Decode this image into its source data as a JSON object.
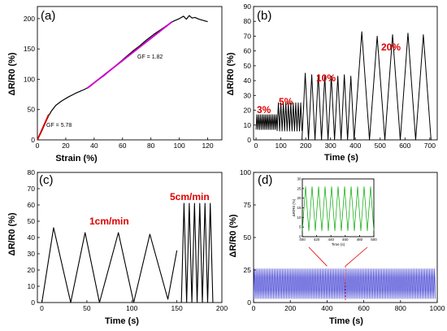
{
  "chart_data": [
    {
      "id": "a",
      "type": "line",
      "panel_label": "(a)",
      "xlabel": "Strain (%)",
      "ylabel": "ΔR/R0 (%)",
      "xlim": [
        0,
        130
      ],
      "ylim": [
        0,
        220
      ],
      "xticks": [
        0,
        20,
        40,
        60,
        80,
        100,
        120
      ],
      "yticks": [
        0,
        50,
        100,
        150,
        200
      ],
      "annotations": [
        {
          "text": "GF = 1.82",
          "x": 72,
          "y": 127
        },
        {
          "text": "GF = 5.78",
          "x": 3,
          "y": 16
        }
      ],
      "series": [
        {
          "role": "measured",
          "color": "#000000",
          "x": [
            0,
            3,
            6,
            8,
            10,
            13,
            17,
            22,
            27,
            30,
            33,
            37,
            42,
            47,
            52,
            57,
            62,
            67,
            72,
            77,
            82,
            87,
            92,
            96,
            100,
            103,
            105,
            107,
            109,
            111,
            114,
            117,
            120
          ],
          "y": [
            0,
            14,
            30,
            40,
            48,
            57,
            64,
            71,
            77,
            80,
            83,
            88,
            98,
            106,
            116,
            126,
            136,
            146,
            155,
            165,
            174,
            182,
            190,
            196,
            200,
            204,
            199,
            205,
            201,
            202,
            199,
            197,
            195
          ]
        },
        {
          "role": "fit-red",
          "color": "#dd0000",
          "x": [
            0,
            8
          ],
          "y": [
            0,
            42
          ]
        },
        {
          "role": "fit-magenta",
          "color": "#cc00cc",
          "x": [
            35,
            95
          ],
          "y": [
            85,
            195
          ]
        }
      ]
    },
    {
      "id": "b",
      "type": "line",
      "panel_label": "(b)",
      "xlabel": "Time (s)",
      "ylabel": "ΔR/R0 (%)",
      "xlim": [
        -10,
        730
      ],
      "ylim": [
        0,
        90
      ],
      "xticks": [
        0,
        100,
        200,
        300,
        400,
        500,
        600,
        700
      ],
      "yticks": [
        0,
        10,
        20,
        30,
        40,
        50,
        60,
        70,
        80,
        90
      ],
      "annotations": [
        {
          "text": "3%",
          "x": 20,
          "y": 20,
          "color": "#dd0000"
        },
        {
          "text": "5%",
          "x": 100,
          "y": 29,
          "color": "#dd0000"
        },
        {
          "text": "10%",
          "x": 240,
          "y": 49,
          "color": "#dd0000"
        },
        {
          "text": "20%",
          "x": 540,
          "y": 76,
          "color": "#dd0000"
        }
      ],
      "series": [
        {
          "role": "3% strain cycles",
          "color": "#000000",
          "t_start": 0,
          "t_end": 85,
          "cycles": 12,
          "peak": 17,
          "trough": 7
        },
        {
          "role": "5% strain cycles",
          "color": "#000000",
          "t_start": 85,
          "t_end": 185,
          "cycles": 10,
          "peak": 25,
          "trough": 6
        },
        {
          "role": "10% strain cycles",
          "color": "#000000",
          "t_start": 185,
          "t_end": 395,
          "cycles": 8,
          "peaks": [
            45,
            44,
            44,
            43,
            43,
            43,
            44,
            43
          ],
          "trough": 0
        },
        {
          "role": "20% strain cycles",
          "color": "#000000",
          "t_start": 395,
          "t_end": 705,
          "cycles": 5,
          "peaks": [
            73,
            70,
            71,
            72,
            71
          ],
          "trough": 0
        }
      ]
    },
    {
      "id": "c",
      "type": "line",
      "panel_label": "(c)",
      "xlabel": "Time (s)",
      "ylabel": "ΔR/R0 (%)",
      "xlim": [
        -5,
        200
      ],
      "ylim": [
        0,
        80
      ],
      "xticks": [
        0,
        50,
        100,
        150,
        200
      ],
      "yticks": [
        0,
        10,
        20,
        30,
        40,
        50,
        60,
        70,
        80
      ],
      "annotations": [
        {
          "text": "1cm/min",
          "x": 86,
          "y": 49,
          "color": "#dd0000"
        },
        {
          "text": "5cm/min",
          "x": 172,
          "y": 67,
          "color": "#dd0000"
        }
      ],
      "series": [
        {
          "role": "1cm/min",
          "color": "#000000",
          "x": [
            0,
            13,
            32,
            48,
            64,
            85,
            102,
            120,
            140,
            150
          ],
          "y": [
            0,
            46,
            0,
            43,
            0,
            43,
            0,
            42,
            2,
            32
          ]
        },
        {
          "role": "5cm/min",
          "color": "#000000",
          "t_start": 155,
          "t_end": 190,
          "cycles": 6,
          "peak": 61,
          "trough": 0
        }
      ]
    },
    {
      "id": "d",
      "type": "line",
      "panel_label": "(d)",
      "xlabel": "Time (s)",
      "ylabel": "ΔR/R0 (%)",
      "xlim": [
        0,
        1000
      ],
      "ylim": [
        0,
        100
      ],
      "xticks": [
        0,
        200,
        400,
        600,
        800,
        1000
      ],
      "yticks": [
        0,
        25,
        50,
        75,
        100
      ],
      "series": [
        {
          "role": "long-term cycling",
          "color": "#2222cc",
          "t_start": 0,
          "t_end": 990,
          "cycles": 110,
          "peak": 26,
          "trough": 3
        }
      ],
      "inset": {
        "type": "line",
        "ylabel": "ΔR/R0 (%)",
        "xlabel": "Time (s)",
        "xlim": [
          400,
          500
        ],
        "ylim": [
          0,
          30
        ],
        "xticks": [
          400,
          420,
          440,
          460,
          480,
          500
        ],
        "yticks": [
          0,
          5,
          10,
          15,
          20,
          25,
          30
        ],
        "color": "#00aa00",
        "t_start": 400,
        "t_end": 500,
        "cycles": 11,
        "peak": 26,
        "trough": 3,
        "source_range": [
          400,
          500
        ]
      }
    }
  ]
}
